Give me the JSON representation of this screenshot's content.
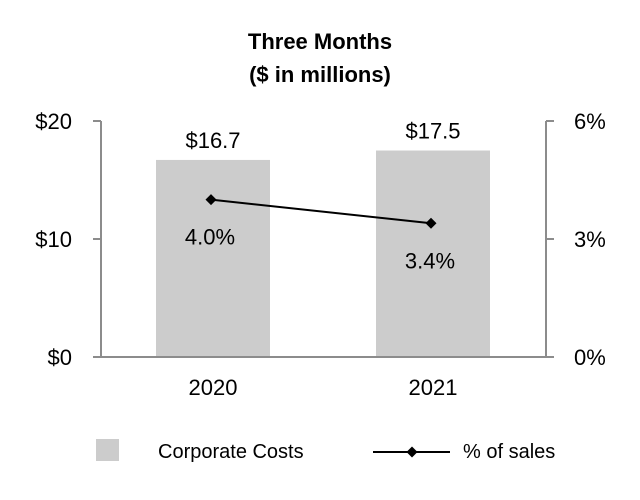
{
  "chart_data": {
    "type": "bar",
    "title": "Three Months",
    "subtitle": "($ in millions)",
    "categories": [
      "2020",
      "2021"
    ],
    "series": [
      {
        "name": "Corporate Costs",
        "kind": "bar",
        "axis": "left",
        "values": [
          16.7,
          17.5
        ],
        "labels": [
          "$16.7",
          "$17.5"
        ],
        "color": "#cccccc"
      },
      {
        "name": "% of sales",
        "kind": "line",
        "axis": "right",
        "values": [
          4.0,
          3.4
        ],
        "labels": [
          "4.0%",
          "3.4%"
        ],
        "color": "#000000"
      }
    ],
    "ylim_left": [
      0,
      20
    ],
    "yticks_left": [
      0,
      10,
      20
    ],
    "ytick_labels_left": [
      "$0",
      "$10",
      "$20"
    ],
    "ylim_right": [
      0,
      6
    ],
    "yticks_right": [
      0,
      3,
      6
    ],
    "ytick_labels_right": [
      "0%",
      "3%",
      "6%"
    ],
    "grid": false,
    "legend_position": "bottom"
  }
}
